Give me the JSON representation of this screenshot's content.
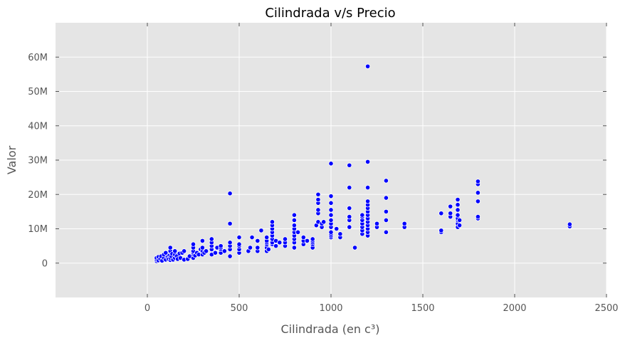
{
  "chart_data": {
    "type": "scatter",
    "title": "Cilindrada v/s Precio",
    "xlabel": "Cilindrada (en c³)",
    "ylabel": "Valor",
    "xlim": [
      -500,
      2500
    ],
    "ylim": [
      -10000000,
      70000000
    ],
    "xticks": [
      0,
      500,
      1000,
      1500,
      2000,
      2500
    ],
    "xtick_labels": [
      "0",
      "500",
      "1000",
      "1500",
      "2000",
      "2500"
    ],
    "yticks": [
      0,
      10000000,
      20000000,
      30000000,
      40000000,
      50000000,
      60000000
    ],
    "ytick_labels": [
      "0",
      "10M",
      "20M",
      "30M",
      "40M",
      "50M",
      "60M"
    ],
    "grid": true,
    "marker_color": "#0000ff",
    "background": "#e5e5e5",
    "points": [
      [
        50,
        600000
      ],
      [
        50,
        1000000
      ],
      [
        50,
        1500000
      ],
      [
        60,
        800000
      ],
      [
        60,
        1800000
      ],
      [
        70,
        1200000
      ],
      [
        75,
        2000000
      ],
      [
        80,
        700000
      ],
      [
        90,
        1500000
      ],
      [
        90,
        2500000
      ],
      [
        100,
        1000000
      ],
      [
        100,
        3000000
      ],
      [
        110,
        1800000
      ],
      [
        115,
        1200000
      ],
      [
        120,
        2200000
      ],
      [
        125,
        900000
      ],
      [
        125,
        1500000
      ],
      [
        125,
        3500000
      ],
      [
        125,
        4500000
      ],
      [
        130,
        2000000
      ],
      [
        135,
        2700000
      ],
      [
        140,
        1000000
      ],
      [
        150,
        1500000
      ],
      [
        150,
        2500000
      ],
      [
        150,
        3500000
      ],
      [
        160,
        2000000
      ],
      [
        165,
        1200000
      ],
      [
        175,
        2800000
      ],
      [
        180,
        1500000
      ],
      [
        190,
        3000000
      ],
      [
        200,
        1000000
      ],
      [
        200,
        3500000
      ],
      [
        220,
        1200000
      ],
      [
        230,
        2000000
      ],
      [
        250,
        1500000
      ],
      [
        250,
        2500000
      ],
      [
        250,
        3000000
      ],
      [
        250,
        3500000
      ],
      [
        250,
        4500000
      ],
      [
        250,
        5500000
      ],
      [
        260,
        2200000
      ],
      [
        270,
        3000000
      ],
      [
        280,
        2500000
      ],
      [
        290,
        4000000
      ],
      [
        300,
        2500000
      ],
      [
        300,
        3500000
      ],
      [
        300,
        4500000
      ],
      [
        300,
        6500000
      ],
      [
        310,
        3000000
      ],
      [
        320,
        3500000
      ],
      [
        350,
        2500000
      ],
      [
        350,
        4000000
      ],
      [
        350,
        5000000
      ],
      [
        350,
        6000000
      ],
      [
        350,
        7000000
      ],
      [
        370,
        3000000
      ],
      [
        380,
        4500000
      ],
      [
        400,
        3000000
      ],
      [
        400,
        4000000
      ],
      [
        400,
        4500000
      ],
      [
        400,
        5000000
      ],
      [
        420,
        3500000
      ],
      [
        450,
        2000000
      ],
      [
        450,
        4000000
      ],
      [
        450,
        5000000
      ],
      [
        450,
        6000000
      ],
      [
        450,
        11500000
      ],
      [
        450,
        20300000
      ],
      [
        500,
        3000000
      ],
      [
        500,
        4000000
      ],
      [
        500,
        5000000
      ],
      [
        500,
        5500000
      ],
      [
        500,
        7500000
      ],
      [
        550,
        3500000
      ],
      [
        560,
        4500000
      ],
      [
        570,
        7500000
      ],
      [
        600,
        3500000
      ],
      [
        600,
        4500000
      ],
      [
        600,
        6500000
      ],
      [
        620,
        9500000
      ],
      [
        650,
        3500000
      ],
      [
        650,
        4500000
      ],
      [
        650,
        5500000
      ],
      [
        650,
        6000000
      ],
      [
        650,
        6500000
      ],
      [
        650,
        7500000
      ],
      [
        660,
        4000000
      ],
      [
        680,
        5500000
      ],
      [
        680,
        6000000
      ],
      [
        680,
        7000000
      ],
      [
        680,
        8000000
      ],
      [
        680,
        9000000
      ],
      [
        680,
        10000000
      ],
      [
        680,
        11000000
      ],
      [
        680,
        12000000
      ],
      [
        700,
        5000000
      ],
      [
        700,
        6500000
      ],
      [
        720,
        6000000
      ],
      [
        750,
        5000000
      ],
      [
        750,
        6000000
      ],
      [
        750,
        7000000
      ],
      [
        800,
        4500000
      ],
      [
        800,
        6000000
      ],
      [
        800,
        7000000
      ],
      [
        800,
        8000000
      ],
      [
        800,
        9000000
      ],
      [
        800,
        10000000
      ],
      [
        800,
        11000000
      ],
      [
        800,
        12500000
      ],
      [
        800,
        14000000
      ],
      [
        820,
        9000000
      ],
      [
        850,
        5500000
      ],
      [
        850,
        6500000
      ],
      [
        850,
        7500000
      ],
      [
        870,
        6500000
      ],
      [
        900,
        4500000
      ],
      [
        900,
        5500000
      ],
      [
        900,
        6000000
      ],
      [
        900,
        6500000
      ],
      [
        900,
        7000000
      ],
      [
        920,
        11000000
      ],
      [
        930,
        12000000
      ],
      [
        930,
        14500000
      ],
      [
        930,
        15500000
      ],
      [
        930,
        17500000
      ],
      [
        930,
        18500000
      ],
      [
        930,
        20000000
      ],
      [
        950,
        10500000
      ],
      [
        950,
        11500000
      ],
      [
        960,
        12000000
      ],
      [
        1000,
        7500000
      ],
      [
        1000,
        8000000
      ],
      [
        1000,
        8500000
      ],
      [
        1000,
        9000000
      ],
      [
        1000,
        10500000
      ],
      [
        1000,
        11500000
      ],
      [
        1000,
        12500000
      ],
      [
        1000,
        14000000
      ],
      [
        1000,
        15500000
      ],
      [
        1000,
        17500000
      ],
      [
        1000,
        19500000
      ],
      [
        1000,
        29000000
      ],
      [
        1030,
        10000000
      ],
      [
        1050,
        7500000
      ],
      [
        1050,
        8500000
      ],
      [
        1100,
        10500000
      ],
      [
        1100,
        12500000
      ],
      [
        1100,
        13500000
      ],
      [
        1100,
        16000000
      ],
      [
        1100,
        22000000
      ],
      [
        1100,
        28500000
      ],
      [
        1130,
        4500000
      ],
      [
        1170,
        8500000
      ],
      [
        1170,
        9500000
      ],
      [
        1170,
        10500000
      ],
      [
        1170,
        11500000
      ],
      [
        1170,
        12500000
      ],
      [
        1170,
        13500000
      ],
      [
        1170,
        14000000
      ],
      [
        1200,
        8000000
      ],
      [
        1200,
        9000000
      ],
      [
        1200,
        10000000
      ],
      [
        1200,
        11000000
      ],
      [
        1200,
        12000000
      ],
      [
        1200,
        13000000
      ],
      [
        1200,
        14000000
      ],
      [
        1200,
        15000000
      ],
      [
        1200,
        16000000
      ],
      [
        1200,
        17000000
      ],
      [
        1200,
        18000000
      ],
      [
        1200,
        22000000
      ],
      [
        1200,
        29500000
      ],
      [
        1200,
        57300000
      ],
      [
        1250,
        10500000
      ],
      [
        1250,
        11500000
      ],
      [
        1300,
        9000000
      ],
      [
        1300,
        12500000
      ],
      [
        1300,
        15000000
      ],
      [
        1300,
        19000000
      ],
      [
        1300,
        24000000
      ],
      [
        1400,
        10500000
      ],
      [
        1400,
        11500000
      ],
      [
        1600,
        9000000
      ],
      [
        1600,
        9500000
      ],
      [
        1600,
        14500000
      ],
      [
        1650,
        13500000
      ],
      [
        1650,
        14500000
      ],
      [
        1650,
        16500000
      ],
      [
        1690,
        10500000
      ],
      [
        1690,
        11500000
      ],
      [
        1690,
        12500000
      ],
      [
        1690,
        13000000
      ],
      [
        1690,
        14000000
      ],
      [
        1690,
        15500000
      ],
      [
        1690,
        17000000
      ],
      [
        1690,
        18500000
      ],
      [
        1700,
        11000000
      ],
      [
        1700,
        12500000
      ],
      [
        1800,
        13000000
      ],
      [
        1800,
        13500000
      ],
      [
        1800,
        18000000
      ],
      [
        1800,
        20500000
      ],
      [
        1800,
        23000000
      ],
      [
        1800,
        23800000
      ],
      [
        2300,
        10700000
      ],
      [
        2300,
        11300000
      ]
    ]
  }
}
